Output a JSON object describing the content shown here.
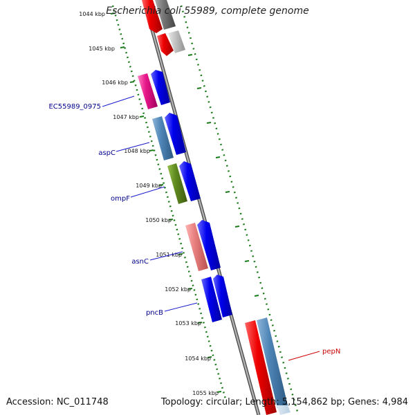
{
  "title": "Escherichia coli 55989, complete genome",
  "footer": {
    "accession": "Accession: NC_011748",
    "summary": "Topology: circular; Length: 5,154,862 bp; Genes: 4,984"
  },
  "ruler_labels": [
    "1044 kbp",
    "1045 kbp",
    "1046 kbp",
    "1047 kbp",
    "1048 kbp",
    "1049 kbp",
    "1050 kbp",
    "1051 kbp",
    "1052 kbp",
    "1053 kbp",
    "1054 kbp",
    "1055 kbp"
  ],
  "gene_labels": [
    {
      "name": "EC55989_0975",
      "color": "#00008b"
    },
    {
      "name": "aspC",
      "color": "#00008b"
    },
    {
      "name": "ompF",
      "color": "#00008b"
    },
    {
      "name": "asnC",
      "color": "#00008b"
    },
    {
      "name": "pncB",
      "color": "#00008b"
    },
    {
      "name": "pepN",
      "color": "#cc0000"
    }
  ],
  "colors": {
    "backbone": "#8a8a8a",
    "ruler_tick": "#1a7a1a",
    "cds": "#0000ee",
    "pink": "#e8188a",
    "steel": "#4f86b8",
    "olive": "#5f8a1f",
    "salmon": "#e88080",
    "red": "#ee0000",
    "gray": "#777777",
    "silver": "#c4c4c4"
  }
}
